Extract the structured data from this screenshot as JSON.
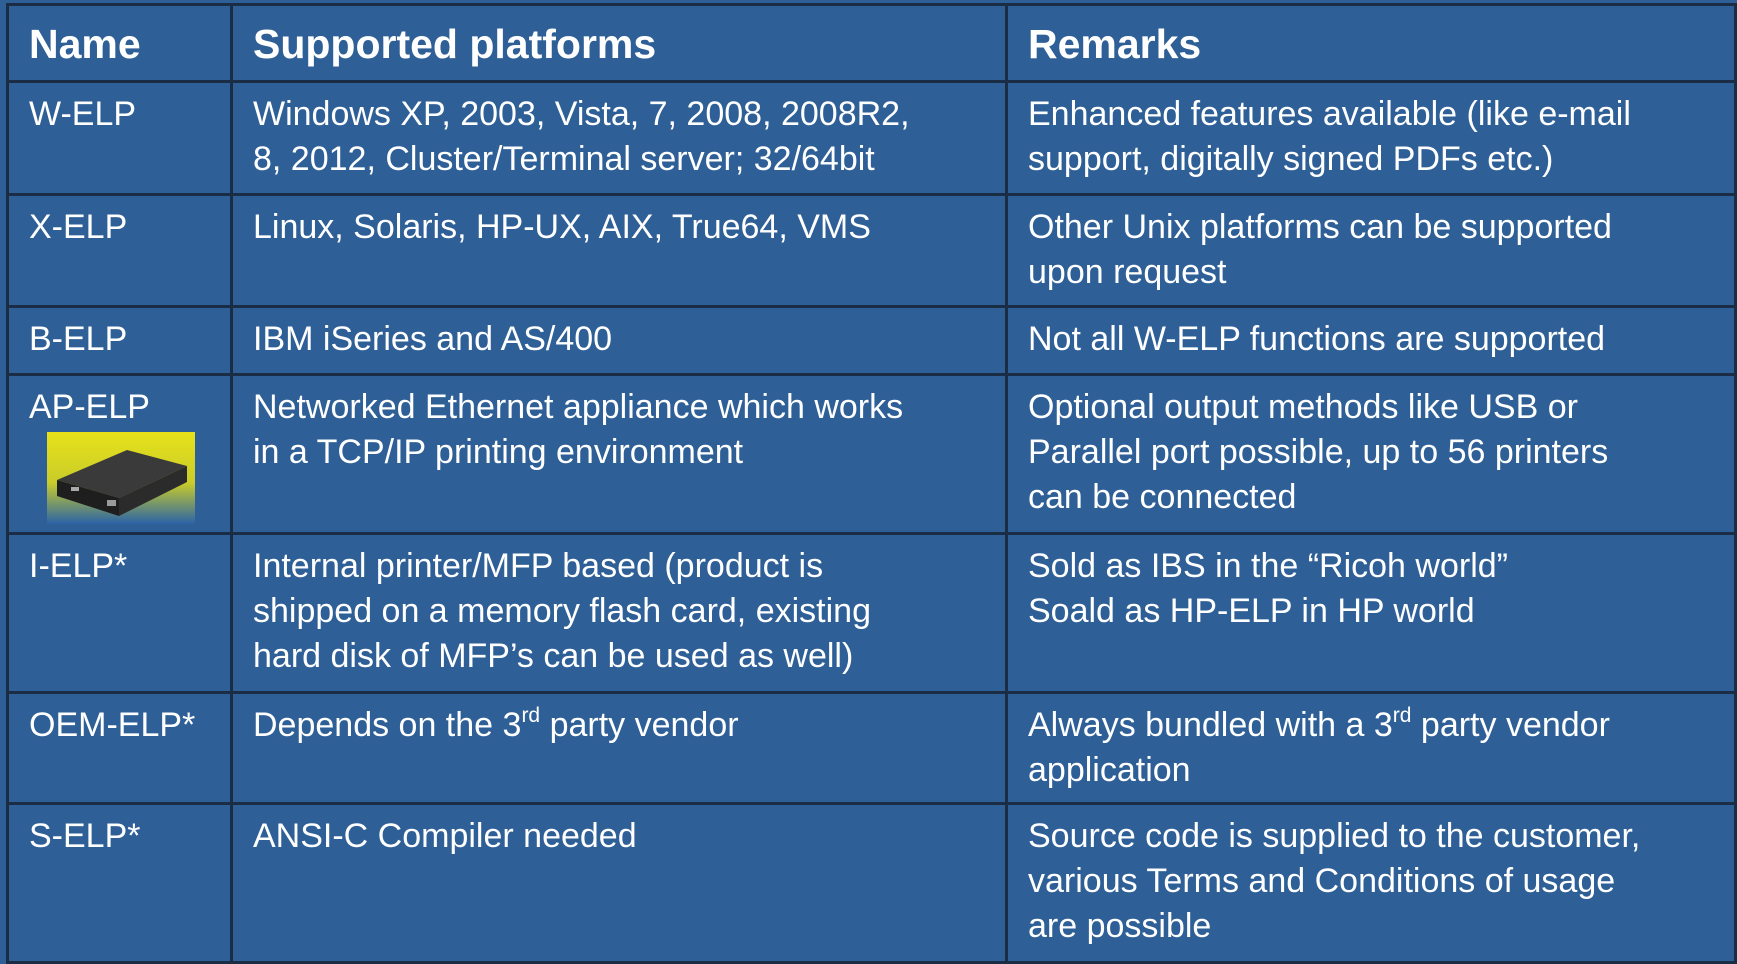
{
  "table": {
    "header": [
      "Name",
      "Supported platforms",
      "Remarks"
    ],
    "rows": [
      [
        [
          "W-ELP"
        ],
        [
          "Windows XP, 2003, Vista, 7, 2008, 2008R2,",
          "8, 2012, Cluster/Terminal server; 32/64bit"
        ],
        [
          "Enhanced features available (like e-mail",
          "support, digitally signed PDFs etc.)"
        ]
      ],
      [
        [
          "X-ELP"
        ],
        [
          "Linux, Solaris, HP-UX, AIX, True64, VMS"
        ],
        [
          "Other Unix platforms can be supported",
          "upon request"
        ]
      ],
      [
        [
          "B-ELP"
        ],
        [
          "IBM iSeries and AS/400"
        ],
        [
          "Not all W-ELP functions are supported"
        ]
      ],
      [
        [
          "AP-ELP"
        ],
        [
          "Networked Ethernet appliance which works",
          "in a TCP/IP printing environment"
        ],
        [
          "Optional output methods like USB or",
          "Parallel port possible, up to 56 printers",
          "can be connected"
        ]
      ],
      [
        [
          "I-ELP*"
        ],
        [
          "Internal printer/MFP based (product is",
          "shipped on a memory flash card, existing",
          "hard disk of MFP’s can be used as well)"
        ],
        [
          "Sold as IBS in the “Ricoh world”",
          "Soald as HP-ELP in HP world"
        ]
      ],
      [
        [
          "OEM-ELP*"
        ],
        [
          [
            "Depends on the 3",
            "rd",
            " party vendor"
          ]
        ],
        [
          [
            "Always bundled with a 3",
            "rd",
            " party vendor"
          ],
          "application"
        ]
      ],
      [
        [
          "S-ELP*"
        ],
        [
          "ANSI-C Compiler needed"
        ],
        [
          "Source code is supplied to the customer,",
          "various Terms and Conditions of usage",
          "are possible"
        ]
      ]
    ]
  }
}
